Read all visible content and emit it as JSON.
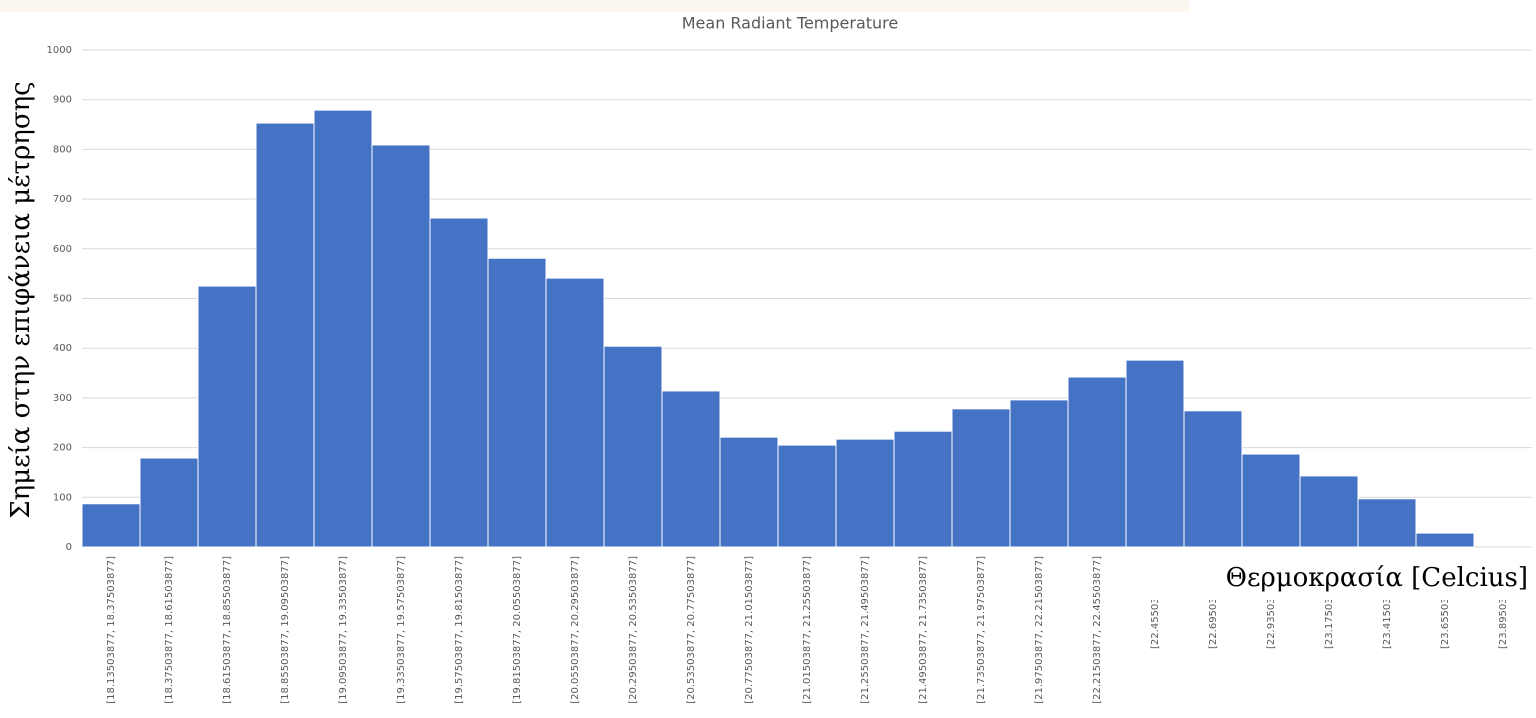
{
  "chart_data": {
    "type": "bar",
    "title": "Mean Radiant Temperature",
    "y_label": "Σημεία στην επιφάνεια μέτρησης",
    "x_label": "Θερμοκρασία [Celcius]",
    "categories": [
      "[18.13503877, 18.37503877]",
      "[18.37503877, 18.61503877]",
      "[18.61503877, 18.85503877]",
      "[18.85503877, 19.09503877]",
      "[19.09503877, 19.33503877]",
      "[19.33503877, 19.57503877]",
      "[19.57503877, 19.81503877]",
      "[19.81503877, 20.05503877]",
      "[20.05503877, 20.29503877]",
      "[20.29503877, 20.53503877]",
      "[20.53503877, 20.77503877]",
      "[20.77503877, 21.01503877]",
      "[21.01503877, 21.25503877]",
      "[21.25503877, 21.49503877]",
      "[21.49503877, 21.73503877]",
      "[21.73503877, 21.97503877]",
      "[21.97503877, 22.21503877]",
      "[22.21503877, 22.45503877]",
      "[22.45503877, 22.",
      "[22.69503877, 22.",
      "[22.93503877, 23.",
      "[23.17503877, 23.",
      "[23.41503877, 23.",
      "[23.65503877, 23.",
      "[23.89503877, 24."
    ],
    "values": [
      87,
      179,
      525,
      853,
      879,
      809,
      662,
      581,
      541,
      404,
      314,
      221,
      205,
      217,
      233,
      278,
      296,
      342,
      376,
      274,
      187,
      143,
      97,
      28,
      0
    ],
    "color": "#4472c4",
    "ylim": [
      0,
      1000
    ],
    "yticks": [
      0,
      100,
      200,
      300,
      400,
      500,
      600,
      700,
      800,
      900,
      1000
    ],
    "grid": true
  }
}
